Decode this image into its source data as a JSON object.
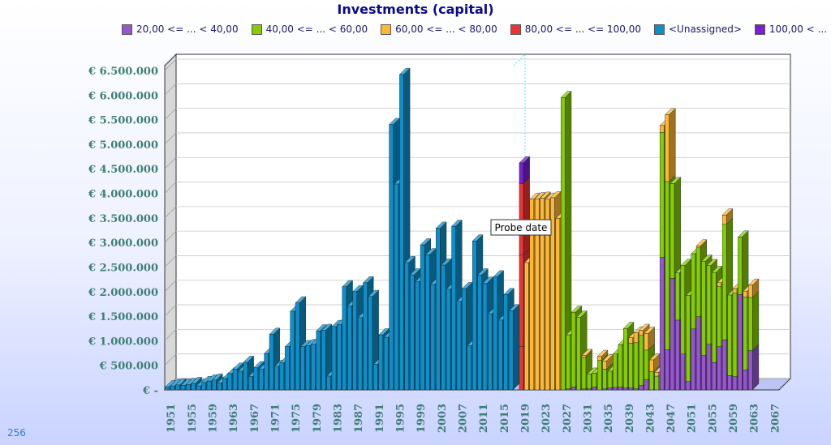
{
  "chart_data": {
    "type": "bar",
    "title": "Investments (capital)",
    "stacked": true,
    "three_d": true,
    "ylim": [
      0,
      6500000
    ],
    "y_ticks": [
      "€ -",
      "€ 500.000",
      "€ 1.000.000",
      "€ 1.500.000",
      "€ 2.000.000",
      "€ 2.500.000",
      "€ 3.000.000",
      "€ 3.500.000",
      "€ 4.000.000",
      "€ 4.500.000",
      "€ 5.000.000",
      "€ 5.500.000",
      "€ 6.000.000",
      "€ 6.500.000"
    ],
    "y_tick_values": [
      0,
      500000,
      1000000,
      1500000,
      2000000,
      2500000,
      3000000,
      3500000,
      4000000,
      4500000,
      5000000,
      5500000,
      6000000,
      6500000
    ],
    "x_tick_labels": [
      "1951",
      "1955",
      "1959",
      "1963",
      "1967",
      "1971",
      "1975",
      "1979",
      "1983",
      "1987",
      "1991",
      "1995",
      "1999",
      "2003",
      "2007",
      "2011",
      "2015",
      "2019",
      "2023",
      "2027",
      "2031",
      "2035",
      "2039",
      "2043",
      "2047",
      "2051",
      "2055",
      "2059",
      "2063",
      "2067"
    ],
    "grid": true,
    "legend_position": "top",
    "categories_start": 1951,
    "categories_end": 2068,
    "series": [
      {
        "name": "20,00 <= ... < 40,00",
        "color": "#9955cc"
      },
      {
        "name": "40,00 <= ... < 60,00",
        "color": "#88cc00"
      },
      {
        "name": "60,00 <= ... < 80,00",
        "color": "#ffb833"
      },
      {
        "name": "80,00 <= ... <= 100,00",
        "color": "#ee3333"
      },
      {
        "name": "<Unassigned>",
        "color": "#0f8fc8"
      },
      {
        "name": "100,00 < ...",
        "color": "#7722cc"
      }
    ],
    "unassigned": {
      "start_year": 1951,
      "values": [
        60000,
        80000,
        100000,
        90000,
        110000,
        130000,
        80000,
        150000,
        180000,
        200000,
        140000,
        230000,
        330000,
        420000,
        380000,
        560000,
        270000,
        450000,
        420000,
        740000,
        1130000,
        480000,
        550000,
        880000,
        1600000,
        1770000,
        880000,
        900000,
        930000,
        1200000,
        1210000,
        280000,
        1290000,
        1330000,
        2100000,
        1710000,
        2000000,
        1470000,
        2180000,
        1900000,
        520000,
        1120000,
        1070000,
        5400000,
        4190000,
        6420000,
        2590000,
        2340000,
        2200000,
        2950000,
        2750000,
        2150000,
        3290000,
        2540000,
        2050000,
        3330000,
        1800000,
        2060000,
        900000,
        3030000,
        2340000,
        2170000,
        1550000,
        2300000,
        1420000,
        1940000,
        1610000
      ]
    },
    "year_2019": [
      {
        "series": "80,00 <= ... <= 100,00",
        "value": 1870000
      },
      {
        "series": "80,00 <= ... <= 100,00",
        "value": 1450000
      },
      {
        "series": "100,00 < ...",
        "value": 420000
      }
    ],
    "year_2019_base": 880000,
    "orange_block": {
      "start_year": 2020,
      "values": [
        2590000,
        3880000,
        3890000,
        3900000,
        3880000,
        3910000,
        3490000
      ]
    },
    "green_block": {
      "start_year": 2027,
      "bottom": [
        0,
        20000,
        60000,
        0,
        20000,
        20000,
        60000,
        0,
        20000,
        40000,
        50000,
        60000,
        40000,
        40000,
        20000,
        90000,
        210000,
        0,
        0,
        2700000,
        820000,
        2270000,
        1420000,
        730000,
        170000,
        1240000,
        1490000,
        700000,
        930000,
        560000,
        880000,
        1020000,
        290000,
        270000,
        1940000,
        410000,
        800000
      ],
      "green": [
        5950000,
        1100000,
        1520000,
        1480000,
        640000,
        300000,
        280000,
        600000,
        400000,
        340000,
        680000,
        860000,
        1210000,
        910000,
        940000,
        1020000,
        600000,
        370000,
        280000,
        2540000,
        3420000,
        1930000,
        960000,
        1800000,
        1750000,
        1530000,
        1400000,
        1920000,
        1600000,
        1830000,
        1230000,
        2350000,
        1640000,
        1700000,
        1170000,
        1480000,
        1080000
      ],
      "orange": [
        0,
        0,
        0,
        0,
        40000,
        0,
        0,
        80000,
        170000,
        0,
        0,
        0,
        0,
        110000,
        200000,
        100000,
        340000,
        240000,
        80000,
        140000,
        1360000,
        0,
        0,
        0,
        0,
        0,
        40000,
        0,
        0,
        0,
        70000,
        190000,
        0,
        90000,
        0,
        120000,
        250000
      ]
    },
    "annotations": [
      "Probe date"
    ],
    "probe_year": 2019
  },
  "footer": {
    "number": "256"
  }
}
